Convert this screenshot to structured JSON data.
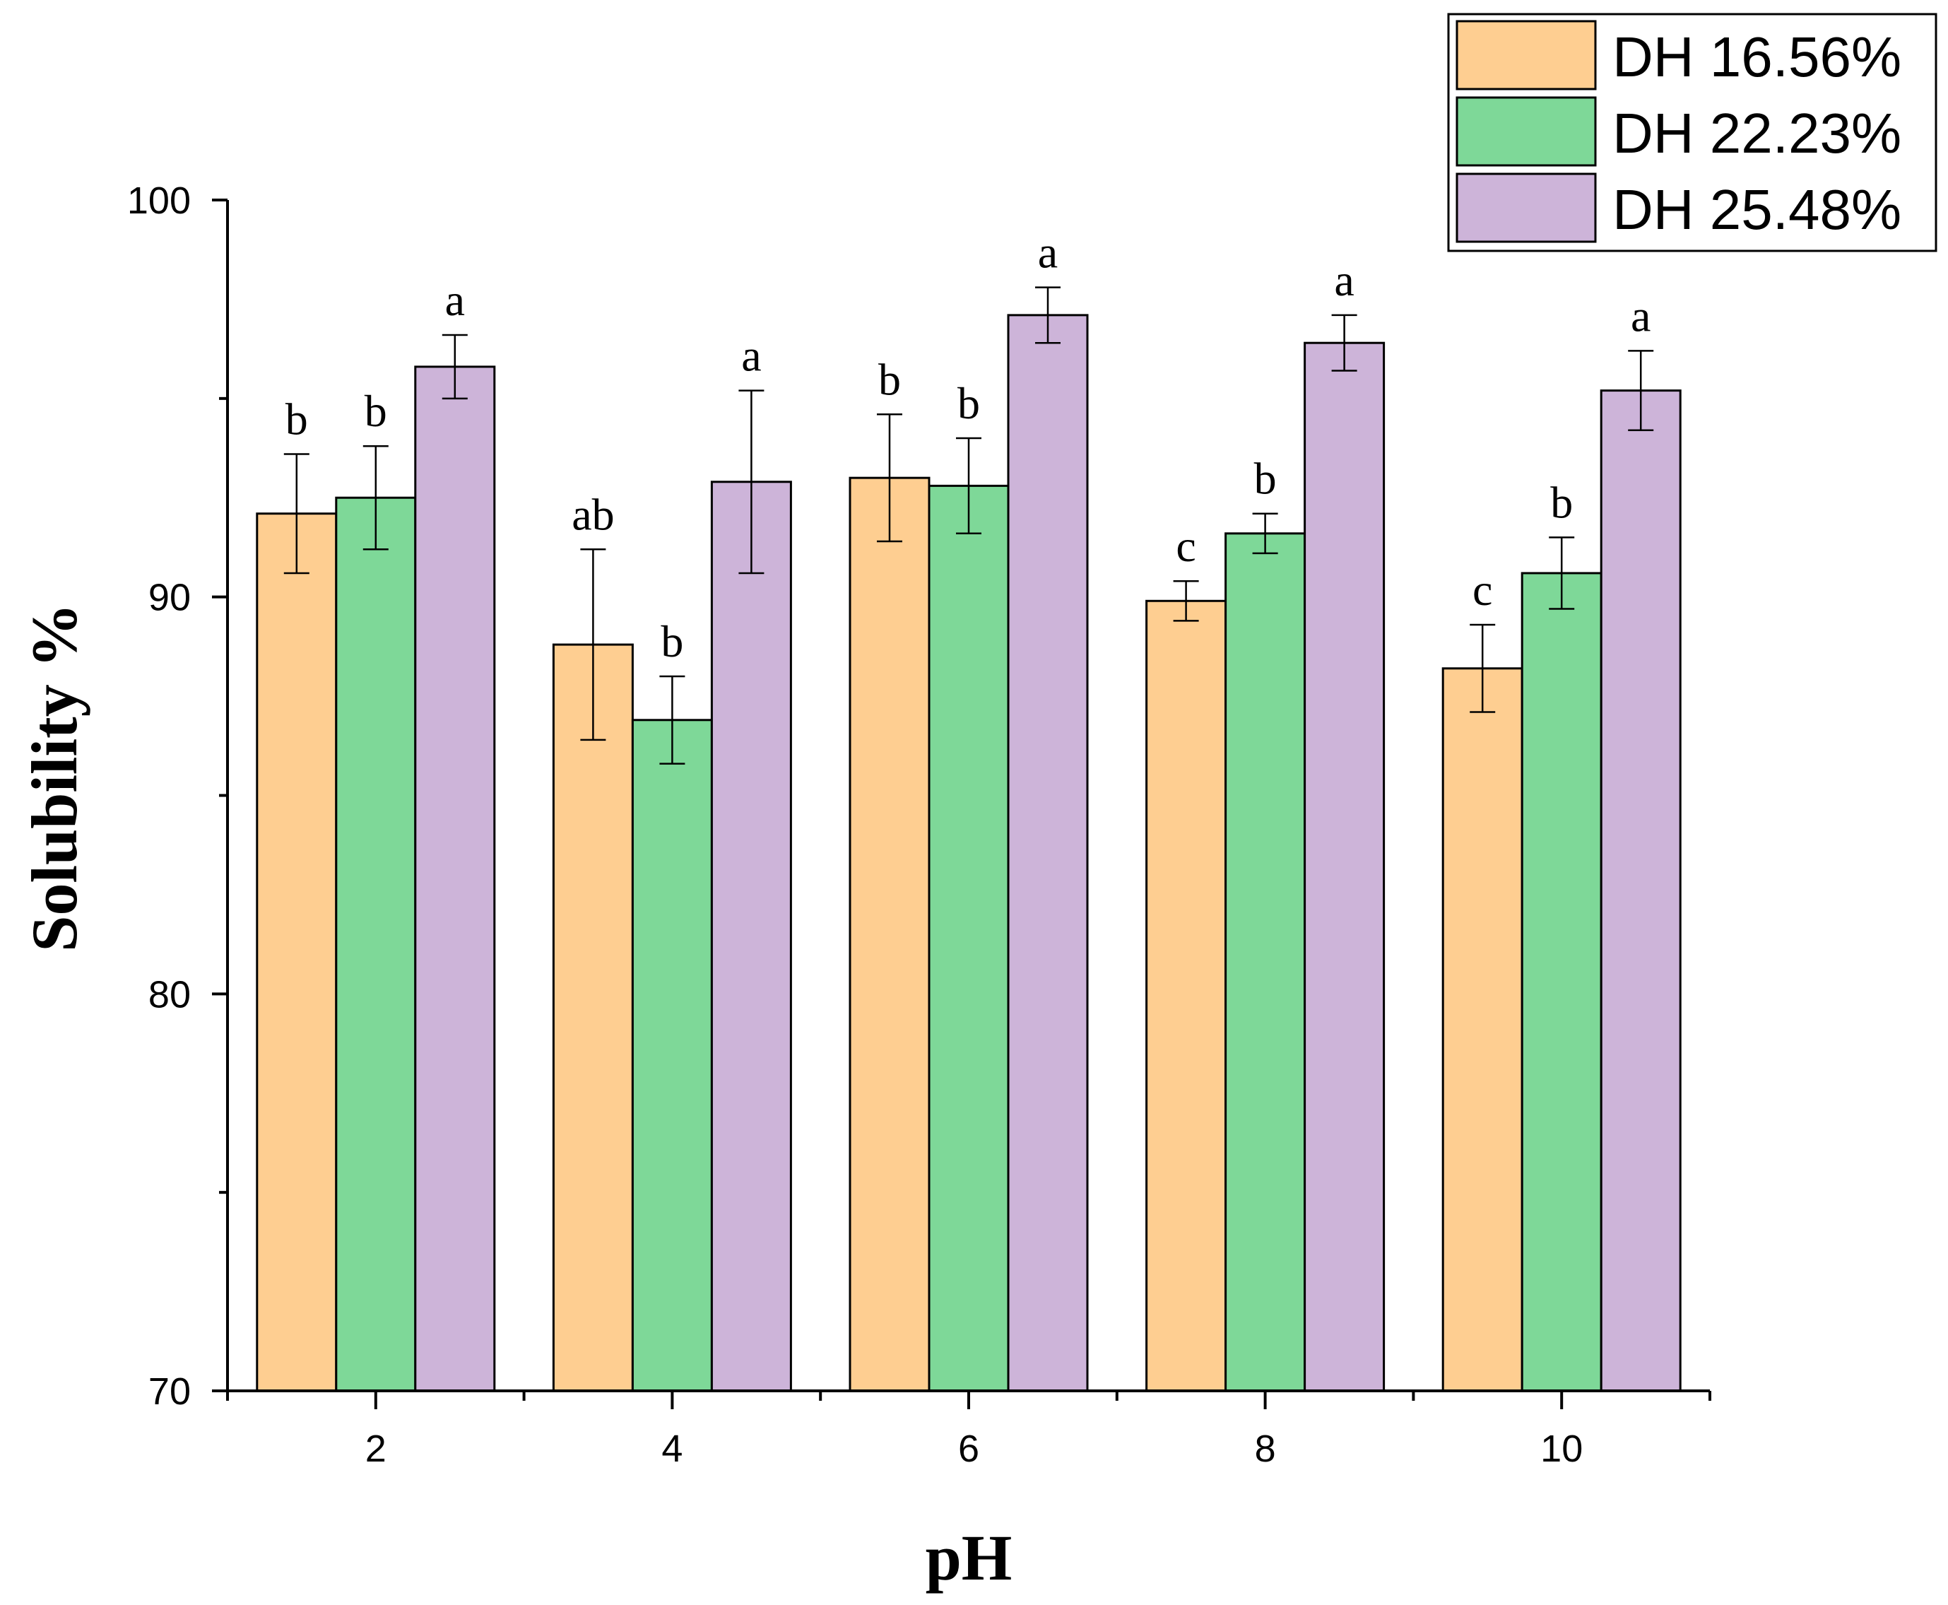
{
  "chart_data": {
    "type": "bar",
    "title": "",
    "xlabel": "pH",
    "ylabel": "Solubility %",
    "categories": [
      "2",
      "4",
      "6",
      "8",
      "10"
    ],
    "ylim": [
      70,
      100
    ],
    "yticks": [
      70,
      80,
      90,
      100
    ],
    "grid": false,
    "legend_position": "top-right",
    "series": [
      {
        "name": "DH 16.56%",
        "color": "#FECE91",
        "values": [
          92.1,
          88.8,
          93.0,
          89.9,
          88.2
        ],
        "errors": [
          1.5,
          2.4,
          1.6,
          0.5,
          1.1
        ],
        "labels": [
          "b",
          "ab",
          "b",
          "c",
          "c"
        ]
      },
      {
        "name": "DH 22.23%",
        "color": "#7ED898",
        "values": [
          92.5,
          86.9,
          92.8,
          91.6,
          90.6
        ],
        "errors": [
          1.3,
          1.1,
          1.2,
          0.5,
          0.9
        ],
        "labels": [
          "b",
          "b",
          "b",
          "b",
          "b"
        ]
      },
      {
        "name": "DH 25.48%",
        "color": "#CDB4D9",
        "values": [
          95.8,
          92.9,
          97.1,
          96.4,
          95.2
        ],
        "errors": [
          0.8,
          2.3,
          0.7,
          0.7,
          1.0
        ],
        "labels": [
          "a",
          "a",
          "a",
          "a",
          "a"
        ]
      }
    ]
  }
}
